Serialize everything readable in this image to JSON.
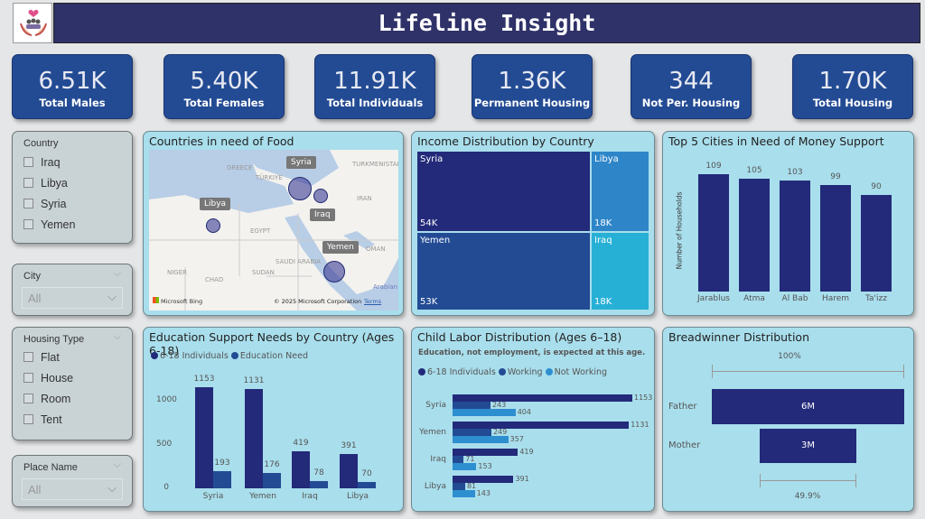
{
  "header": {
    "title": "Lifeline Insight",
    "logo_icon": "hands-holding-family-heart-icon"
  },
  "kpis": [
    {
      "value": "6.51K",
      "label": "Total Males"
    },
    {
      "value": "5.40K",
      "label": "Total Females"
    },
    {
      "value": "11.91K",
      "label": "Total Individuals"
    },
    {
      "value": "1.36K",
      "label": "Permanent Housing"
    },
    {
      "value": "344",
      "label": "Not Per. Housing"
    },
    {
      "value": "1.70K",
      "label": "Total Housing"
    }
  ],
  "slicers": {
    "country": {
      "title": "Country",
      "options": [
        "Iraq",
        "Libya",
        "Syria",
        "Yemen"
      ]
    },
    "city": {
      "title": "City",
      "value": "All"
    },
    "housing": {
      "title": "Housing Type",
      "options": [
        "Flat",
        "House",
        "Room",
        "Tent"
      ]
    },
    "place": {
      "title": "Place Name",
      "value": "All"
    }
  },
  "map": {
    "title": "Countries in need of Food",
    "labels": [
      "Syria",
      "Iraq",
      "Libya",
      "Yemen"
    ],
    "places": [
      "GREECE",
      "TÜRKIYE",
      "TURKMENISTAN",
      "IRAN",
      "EGYPT",
      "SAUDI ARABIA",
      "OMAN",
      "NIGER",
      "CHAD",
      "SUDAN",
      "Arabian S"
    ],
    "attribution": "© 2025 Microsoft Corporation",
    "terms": "Terms",
    "brand": "Microsoft Bing"
  },
  "colors": {
    "dark": "#232a7a",
    "mid": "#234b94",
    "light": "#2e86c8",
    "cyan": "#27b0d6"
  },
  "chart_data": [
    {
      "type": "treemap",
      "title": "Income Distribution by Country",
      "categories": [
        "Syria",
        "Yemen",
        "Libya",
        "Iraq"
      ],
      "values": [
        54,
        53,
        18,
        18
      ],
      "labels": [
        "54K",
        "53K",
        "18K",
        "18K"
      ]
    },
    {
      "type": "bar",
      "title": "Top 5 Cities in Need of Money Support",
      "ylabel": "Number of Households",
      "categories": [
        "Jarablus",
        "Atma",
        "Al Bab",
        "Harem",
        "Ta'izz"
      ],
      "values": [
        109,
        105,
        103,
        99,
        90
      ]
    },
    {
      "type": "bar",
      "title": "Education Support Needs by Country (Ages 6-18)",
      "categories": [
        "Syria",
        "Yemen",
        "Iraq",
        "Libya"
      ],
      "yticks": [
        "0",
        "500",
        "1000"
      ],
      "ylim": [
        0,
        1200
      ],
      "series": [
        {
          "name": "6-18 Individuals",
          "values": [
            1153,
            1131,
            419,
            391
          ]
        },
        {
          "name": "Education Need",
          "values": [
            193,
            176,
            78,
            70
          ]
        }
      ]
    },
    {
      "type": "bar",
      "orientation": "horizontal",
      "title": "Child Labor Distribution (Ages 6–18)",
      "subtitle": "Education, not employment, is expected at this age.",
      "categories": [
        "Syria",
        "Yemen",
        "Iraq",
        "Libya"
      ],
      "series": [
        {
          "name": "6-18 Individuals",
          "values": [
            1153,
            1131,
            419,
            391
          ]
        },
        {
          "name": "Working",
          "values": [
            243,
            249,
            71,
            81
          ]
        },
        {
          "name": "Not Working",
          "values": [
            404,
            357,
            153,
            143
          ]
        }
      ]
    },
    {
      "type": "funnel",
      "title": "Breadwinner Distribution",
      "categories": [
        "Father",
        "Mother"
      ],
      "labels": [
        "6M",
        "3M"
      ],
      "values": [
        6,
        3
      ],
      "top_pct": "100%",
      "bottom_pct": "49.9%"
    }
  ]
}
